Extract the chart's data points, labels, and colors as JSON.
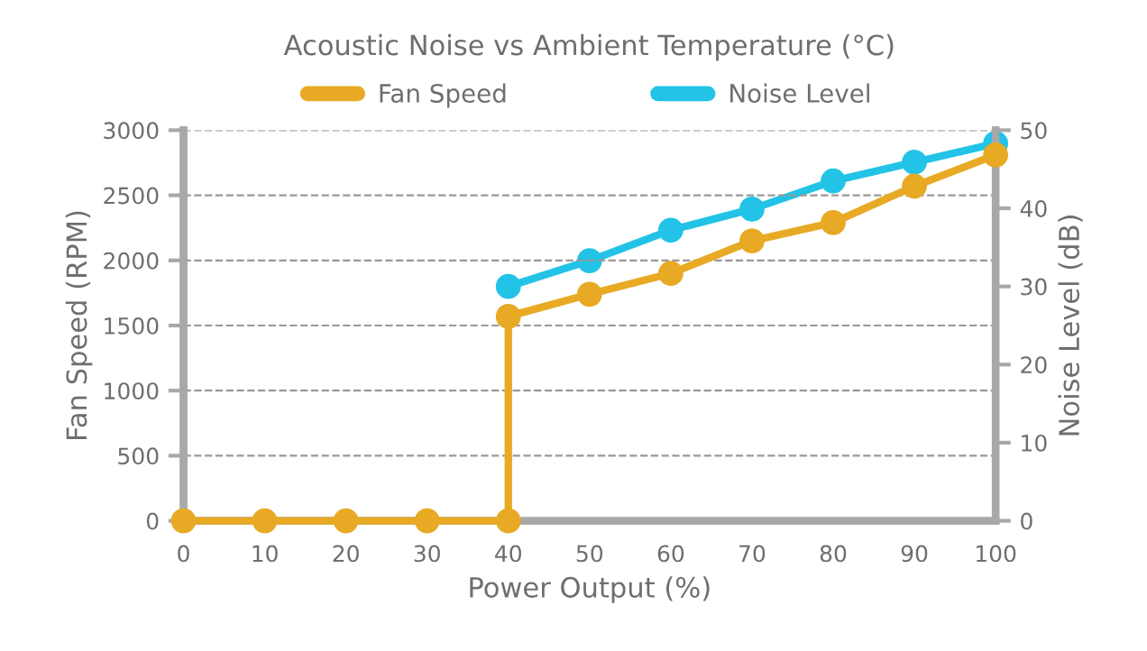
{
  "chart_data": {
    "type": "line",
    "title": "Acoustic Noise vs Ambient Temperature (°C)",
    "xlabel": "Power Output (%)",
    "ylabel": "Fan Speed (RPM)",
    "y2label": "Noise Level (dB)",
    "xlim": [
      0,
      100
    ],
    "xticks": [
      0,
      10,
      20,
      30,
      40,
      50,
      60,
      70,
      80,
      90,
      100
    ],
    "ylim": [
      0,
      3000
    ],
    "yticks": [
      0,
      500,
      1000,
      1500,
      2000,
      2500,
      3000
    ],
    "y2lim": [
      0,
      50
    ],
    "y2ticks": [
      0,
      10,
      20,
      30,
      40,
      50
    ],
    "grid": "y",
    "legend": "top",
    "marker": "circle",
    "line_style": "solid",
    "series": [
      {
        "name": "Fan Speed",
        "color": "#e8aa24",
        "x": [
          0,
          10,
          20,
          30,
          40,
          40,
          50,
          60,
          70,
          80,
          90,
          100
        ],
        "values": [
          0,
          0,
          0,
          0,
          0,
          1570,
          1740,
          1900,
          2150,
          2290,
          2570,
          2810
        ]
      },
      {
        "name": "Noise Level",
        "color": "#22c3e6",
        "axis": "y2",
        "x": [
          40,
          50,
          60,
          70,
          80,
          90,
          100
        ],
        "values": [
          30.0,
          33.3,
          37.2,
          39.9,
          43.5,
          45.9,
          48.3
        ]
      }
    ]
  }
}
